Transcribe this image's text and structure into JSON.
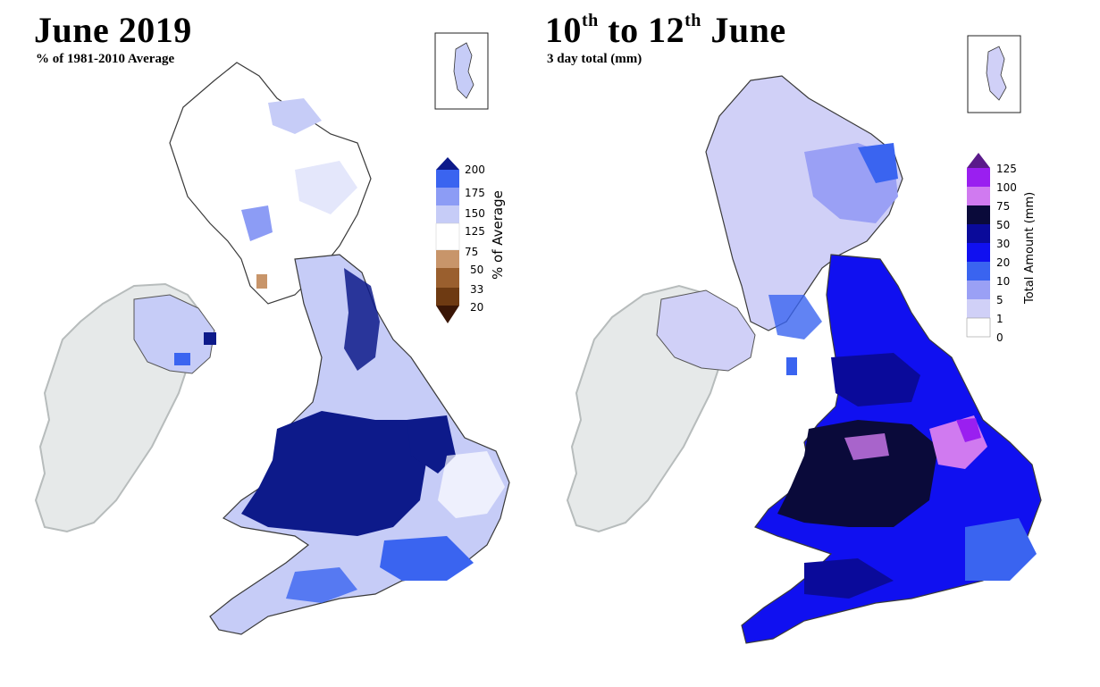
{
  "left_panel": {
    "title": "June 2019",
    "subtitle": "% of 1981-2010 Average",
    "legend": {
      "label": "% of Average",
      "ticks": [
        "200",
        "175",
        "150",
        "125",
        "75",
        "50",
        "33",
        "20"
      ],
      "colors": {
        "above_200": "#0d1a8a",
        "175_200": "#3a64f0",
        "150_175": "#8c9cf5",
        "125_150": "#c6ccf7",
        "75_125": "#ffffff",
        "50_75": "#c8956a",
        "33_50": "#9a5f2e",
        "20_33": "#6e3a12",
        "below_20": "#3a1606"
      }
    }
  },
  "right_panel": {
    "title_part1": "10",
    "title_sup1": "th",
    "title_part2": " to 12",
    "title_sup2": "th",
    "title_part3": " June",
    "subtitle": "3 day total (mm)",
    "legend": {
      "label": "Total Amount (mm)",
      "ticks": [
        "125",
        "100",
        "75",
        "50",
        "30",
        "20",
        "10",
        "5",
        "1",
        "0"
      ],
      "colors": {
        "above_125": "#5a1a8a",
        "100_125": "#9a1ff0",
        "75_100": "#d07af0",
        "50_75": "#0a0a3a",
        "30_50": "#0a0a9a",
        "20_30": "#1010f0",
        "10_20": "#3a64f0",
        "5_10": "#9aa0f5",
        "1_5": "#d0d0f7",
        "0_1": "#ffffff"
      }
    }
  },
  "map": {
    "land_outline": "#2a2a2a",
    "ireland_fill": "#d8dcdc"
  }
}
